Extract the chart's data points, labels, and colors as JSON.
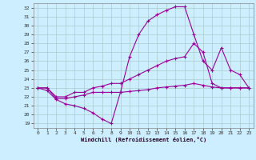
{
  "xlabel": "Windchill (Refroidissement éolien,°C)",
  "background_color": "#cceeff",
  "grid_color": "#aacccc",
  "line_color": "#990099",
  "xlim": [
    -0.5,
    23.5
  ],
  "ylim": [
    18.5,
    32.5
  ],
  "xticks": [
    0,
    1,
    2,
    3,
    4,
    5,
    6,
    7,
    8,
    9,
    10,
    11,
    12,
    13,
    14,
    15,
    16,
    17,
    18,
    19,
    20,
    21,
    22,
    23
  ],
  "yticks": [
    19,
    20,
    21,
    22,
    23,
    24,
    25,
    26,
    27,
    28,
    29,
    30,
    31,
    32
  ],
  "series": [
    {
      "x": [
        0,
        1,
        2,
        3,
        4,
        5,
        6,
        7,
        8,
        9,
        10,
        11,
        12,
        13,
        14,
        15,
        16,
        17,
        18,
        19,
        20,
        21,
        22,
        23
      ],
      "y": [
        23.0,
        22.7,
        21.7,
        21.2,
        21.0,
        20.7,
        20.2,
        19.5,
        19.0,
        22.5,
        26.5,
        29.0,
        30.5,
        31.2,
        31.7,
        32.1,
        32.1,
        29.0,
        26.0,
        25.0,
        27.5,
        25.0,
        24.5,
        23.0
      ]
    },
    {
      "x": [
        0,
        1,
        2,
        3,
        4,
        5,
        6,
        7,
        8,
        9,
        10,
        11,
        12,
        13,
        14,
        15,
        16,
        17,
        18,
        19,
        20,
        21,
        22,
        23
      ],
      "y": [
        23.0,
        23.0,
        22.0,
        22.0,
        22.5,
        22.5,
        23.0,
        23.2,
        23.5,
        23.5,
        24.0,
        24.5,
        25.0,
        25.5,
        26.0,
        26.3,
        26.5,
        28.0,
        27.0,
        23.5,
        23.0,
        23.0,
        23.0,
        23.0
      ]
    },
    {
      "x": [
        0,
        1,
        2,
        3,
        4,
        5,
        6,
        7,
        8,
        9,
        10,
        11,
        12,
        13,
        14,
        15,
        16,
        17,
        18,
        19,
        20,
        21,
        22,
        23
      ],
      "y": [
        23.0,
        23.0,
        21.8,
        21.8,
        22.0,
        22.2,
        22.5,
        22.5,
        22.5,
        22.5,
        22.6,
        22.7,
        22.8,
        23.0,
        23.1,
        23.2,
        23.3,
        23.5,
        23.3,
        23.1,
        23.0,
        23.0,
        23.0,
        23.0
      ]
    }
  ]
}
